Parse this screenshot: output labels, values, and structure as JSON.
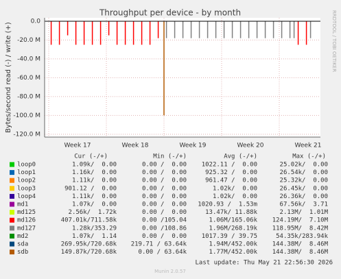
{
  "chart_data": {
    "type": "spike",
    "title": "Throughput per device - by month",
    "y_label": "Bytes/second read (-) / write (+)",
    "side_text": "RRDTOOL / TOBI OETIKER",
    "footer": "Last update: Thu May 21 22:56:30 2026",
    "version": "Munin 2.0.57",
    "xlim": [
      0,
      33.5
    ],
    "xticks": [
      {
        "value": 4,
        "label": "Week 17"
      },
      {
        "value": 11,
        "label": "Week 18"
      },
      {
        "value": 18,
        "label": "Week 19"
      },
      {
        "value": 25,
        "label": "Week 20"
      },
      {
        "value": 32,
        "label": "Week 21"
      }
    ],
    "ylim": [
      -123,
      3.6
    ],
    "yticks": [
      {
        "value": 0,
        "label": "0.0"
      },
      {
        "value": -20,
        "label": "-20.0 M"
      },
      {
        "value": -40,
        "label": "-40.0 M"
      },
      {
        "value": -60,
        "label": "-60.0 M"
      },
      {
        "value": -80,
        "label": "-80.0 M"
      },
      {
        "value": -100,
        "label": "-100.0 M"
      },
      {
        "value": -120,
        "label": "-120.0 M"
      }
    ],
    "grid": true,
    "columns": [
      "Cur (-/+)",
      "Min (-/+)",
      "Avg (-/+)",
      "Max (-/+)"
    ],
    "series": [
      {
        "name": "loop0",
        "color": "#00cc00",
        "x": [],
        "values": [],
        "stats": [
          "1.09k/  0.00",
          "0.00 /  0.00",
          "1022.11 /  0.00",
          "25.02k/  0.00"
        ]
      },
      {
        "name": "loop1",
        "color": "#0066b3",
        "x": [],
        "values": [],
        "stats": [
          "1.16k/  0.00",
          "0.00 /  0.00",
          "925.32 /  0.00",
          "26.54k/  0.00"
        ]
      },
      {
        "name": "loop2",
        "color": "#ff8000",
        "x": [],
        "values": [],
        "stats": [
          "1.11k/  0.00",
          "0.00 /  0.00",
          "961.47 /  0.00",
          "25.32k/  0.00"
        ]
      },
      {
        "name": "loop3",
        "color": "#ffcc00",
        "x": [],
        "values": [],
        "stats": [
          "901.12 /  0.00",
          "0.00 /  0.00",
          "1.02k/  0.00",
          "26.45k/  0.00"
        ]
      },
      {
        "name": "loop4",
        "color": "#330099",
        "x": [],
        "values": [],
        "stats": [
          "1.11k/  0.00",
          "0.00 /  0.00",
          "1.02k/  0.00",
          "26.36k/  0.00"
        ]
      },
      {
        "name": "md1",
        "color": "#990099",
        "x": [],
        "values": [],
        "stats": [
          "1.07k/  0.00",
          "0.00 /  0.00",
          "1020.93 /  1.53m",
          "67.56k/  3.71"
        ]
      },
      {
        "name": "md125",
        "color": "#ccff00",
        "x": [],
        "values": [],
        "stats": [
          "2.56k/  1.72k",
          "0.00 /  0.00",
          "13.47k/ 11.88k",
          "2.13M/  1.01M"
        ]
      },
      {
        "name": "md126",
        "color": "#ff0000",
        "x": [
          0.8,
          1.8,
          2.8,
          3.8,
          4.8,
          5.8,
          6.8,
          7.8,
          8.8,
          9.8,
          10.8,
          11.8,
          12.8,
          13.8,
          30.8,
          31.8
        ],
        "values": [
          -25,
          -25,
          -15,
          -25,
          -25,
          -25,
          -25,
          -15,
          -25,
          -25,
          -25,
          -25,
          -25,
          -18,
          -25,
          -25
        ],
        "stats": [
          "407.01k/711.58k",
          "0.00 /105.04",
          "1.06M/165.06k",
          "124.19M/  7.10M"
        ]
      },
      {
        "name": "md127",
        "color": "#808080",
        "x": [
          14.8,
          15.8,
          16.8,
          17.8,
          18.8,
          19.8,
          20.8,
          21.8,
          22.8,
          23.8,
          24.8,
          25.8,
          26.8,
          27.8,
          28.8,
          29.8,
          30.3,
          32.3
        ],
        "values": [
          -18,
          -18,
          -18,
          -18,
          -18,
          -18,
          -18,
          -18,
          -18,
          -18,
          -18,
          -18,
          -18,
          -18,
          -18,
          -18,
          -18,
          -18
        ],
        "stats": [
          "1.28k/353.29",
          "0.00 /108.86",
          "1.96M/268.19k",
          "118.95M/  8.42M"
        ]
      },
      {
        "name": "md2",
        "color": "#008f00",
        "x": [],
        "values": [],
        "stats": [
          "1.07k/  1.14",
          "0.00 /  0.00",
          "1017.39 / 39.75",
          "54.35k/283.94k"
        ]
      },
      {
        "name": "sda",
        "color": "#00487d",
        "x": [],
        "values": [],
        "stats": [
          "269.95k/720.68k",
          "219.71 / 63.64k",
          "1.94M/452.00k",
          "144.38M/  8.46M"
        ]
      },
      {
        "name": "sdb",
        "color": "#b35a00",
        "x": [
          14.5
        ],
        "values": [
          -100
        ],
        "stats": [
          "149.87k/720.68k",
          "0.00 / 63.64k",
          "1.77M/452.00k",
          "144.38M/  8.46M"
        ]
      }
    ]
  }
}
